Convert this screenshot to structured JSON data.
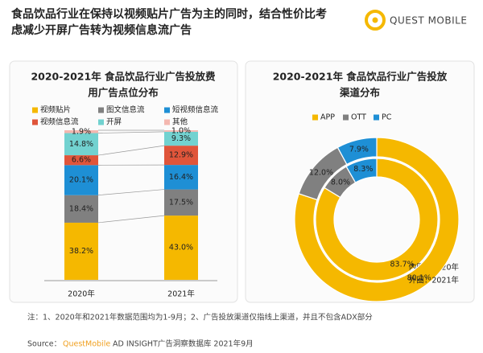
{
  "header": {
    "title": [
      "食品饮品行业在保持以视频贴片广告为主的同时，结合性价比考",
      "虑减少开屏广告转为视频信息流广告"
    ],
    "logo": "QUEST MOBILE"
  },
  "chart_data": [
    {
      "type": "stacked_bar",
      "title": [
        "2020-2021年 食品饮品行业广告投放费",
        "用广告点位分布"
      ],
      "categories": [
        "2020年",
        "2021年"
      ],
      "series": [
        {
          "name": "视频贴片",
          "color": "#f5b800",
          "values": [
            38.2,
            43.0
          ],
          "value_labels": [
            "38.2%",
            "43.0%"
          ]
        },
        {
          "name": "图文信息流",
          "color": "#808080",
          "values": [
            18.4,
            17.5
          ],
          "value_labels": [
            "18.4%",
            "17.5%"
          ]
        },
        {
          "name": "短视频信息流",
          "color": "#1e8fd5",
          "values": [
            20.1,
            16.4
          ],
          "value_labels": [
            "20.1%",
            "16.4%"
          ]
        },
        {
          "name": "视频信息流",
          "color": "#e0553a",
          "values": [
            6.6,
            12.9
          ],
          "value_labels": [
            "6.6%",
            "12.9%"
          ]
        },
        {
          "name": "开屏",
          "color": "#72d2d0",
          "values": [
            14.8,
            9.3
          ],
          "value_labels": [
            "14.8%",
            "9.3%"
          ]
        },
        {
          "name": "其他",
          "color": "#f4b8b0",
          "values": [
            1.9,
            1.0
          ],
          "value_labels": [
            "1.9%",
            "1.0%"
          ]
        }
      ]
    },
    {
      "type": "donut",
      "title": [
        "2020-2021年 食品饮品行业广告投放",
        "渠道分布"
      ],
      "categories": [
        "APP",
        "OTT",
        "PC"
      ],
      "colors": [
        "#f5b800",
        "#808080",
        "#1e8fd5"
      ],
      "series": [
        {
          "name": "内圈：2020年",
          "values": [
            83.7,
            8.0,
            8.3
          ],
          "value_labels": [
            "83.7%",
            "8.0%",
            "8.3%"
          ]
        },
        {
          "name": "外圈：2021年",
          "values": [
            80.1,
            12.0,
            7.9
          ],
          "value_labels": [
            "80.1%",
            "12.0%",
            "7.9%"
          ]
        }
      ]
    }
  ],
  "footnote": "注：1、2020年和2021年数据范围均为1-9月；2、广告投放渠道仅指线上渠道，并且不包含ADX部分",
  "source": {
    "label": "Source：",
    "brand": "QuestMobile",
    "rest": "AD INSIGHT广告洞察数据库 2021年9月"
  }
}
